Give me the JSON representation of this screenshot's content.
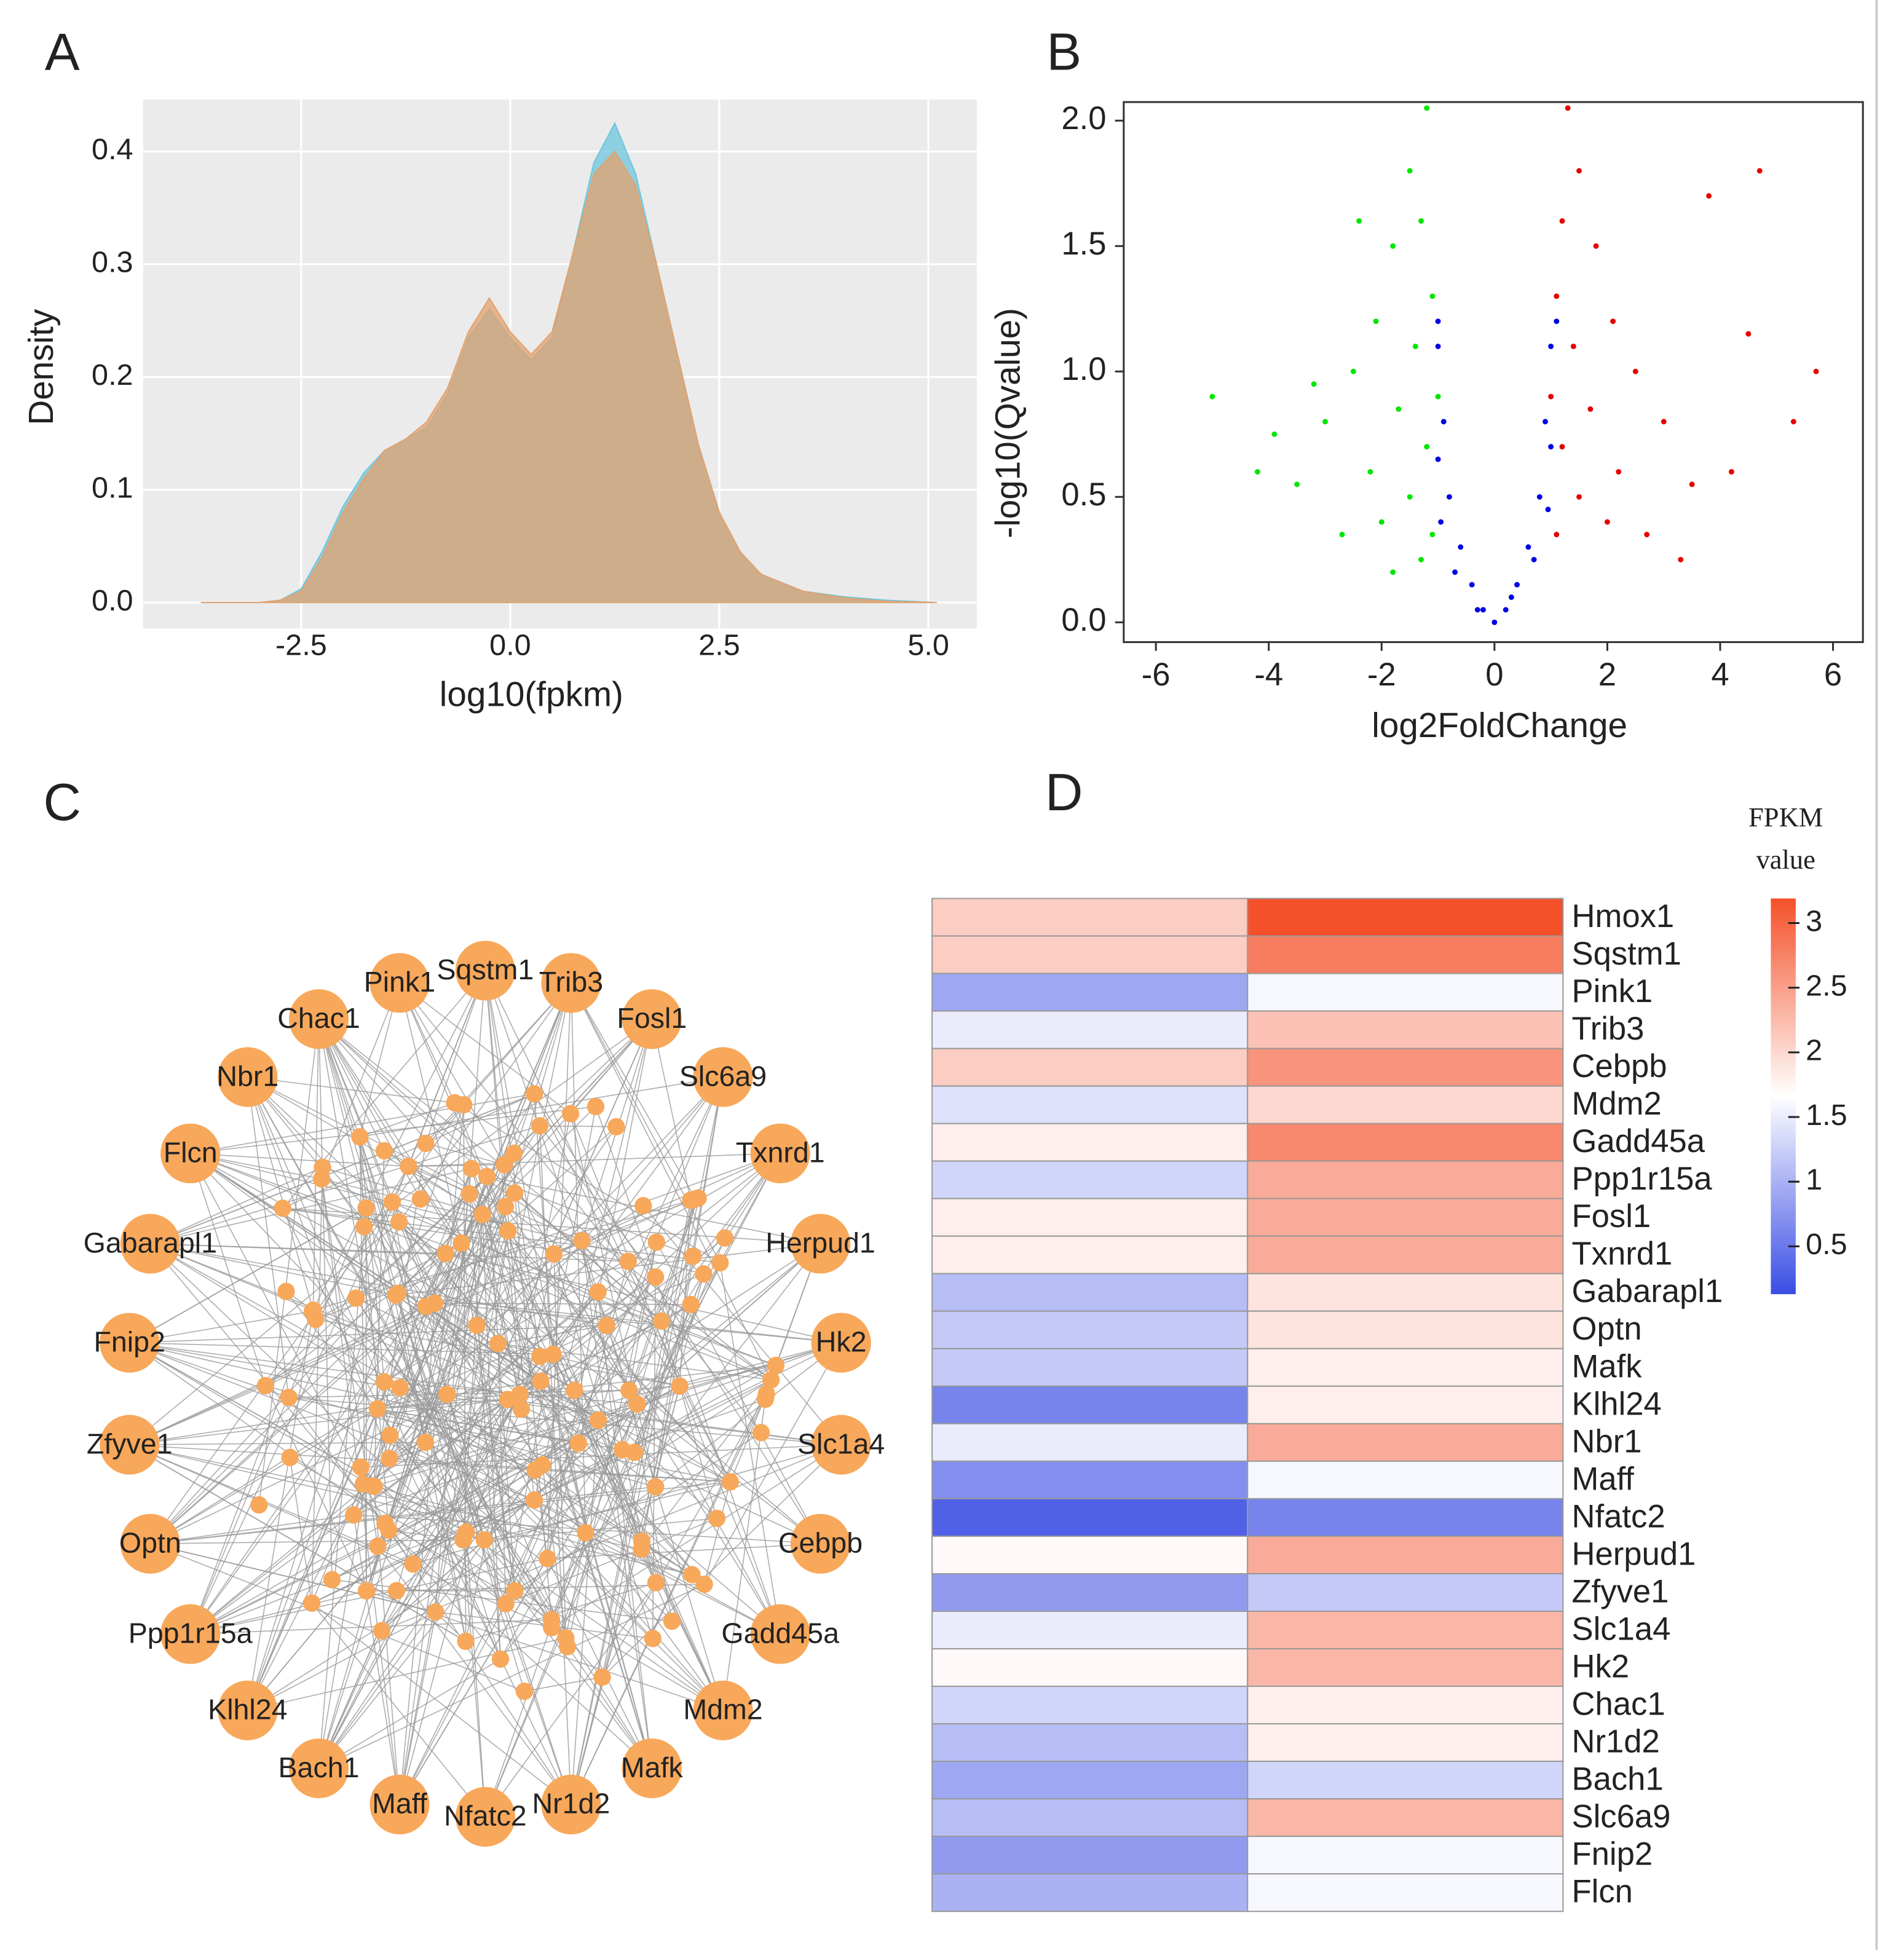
{
  "chart_data": [
    {
      "type": "area",
      "panel": "A",
      "x_label": "log10(fpkm)",
      "y_label": "Density",
      "x": [
        -3.7,
        -3,
        -2.75,
        -2.5,
        -2.25,
        -2,
        -1.75,
        -1.5,
        -1.25,
        -1,
        -0.75,
        -0.5,
        -0.25,
        0,
        0.25,
        0.5,
        0.75,
        1,
        1.25,
        1.5,
        1.75,
        2,
        2.25,
        2.5,
        2.75,
        3,
        3.5,
        4,
        4.5,
        5.1
      ],
      "series": [
        {
          "color": "#6ec6dc",
          "values": [
            0,
            0,
            0.002,
            0.012,
            0.045,
            0.085,
            0.115,
            0.135,
            0.145,
            0.155,
            0.185,
            0.235,
            0.26,
            0.235,
            0.215,
            0.235,
            0.31,
            0.39,
            0.425,
            0.38,
            0.3,
            0.22,
            0.14,
            0.08,
            0.045,
            0.025,
            0.01,
            0.005,
            0.002,
            0
          ]
        },
        {
          "color": "#e3a26e",
          "values": [
            0,
            0,
            0.002,
            0.01,
            0.04,
            0.08,
            0.11,
            0.135,
            0.145,
            0.16,
            0.19,
            0.24,
            0.27,
            0.24,
            0.22,
            0.24,
            0.31,
            0.38,
            0.4,
            0.37,
            0.3,
            0.22,
            0.14,
            0.08,
            0.045,
            0.025,
            0.01,
            0.004,
            0.001,
            0
          ]
        }
      ],
      "xlim": [
        -4.39,
        5.58
      ],
      "ylim": [
        -0.023,
        0.446
      ],
      "xticks": [
        -2.5,
        {
          "value": 0,
          "label": "0.0"
        },
        2.5,
        {
          "value": 5,
          "label": "5.0"
        }
      ],
      "yticks": [
        {
          "value": 0,
          "label": "0.0"
        },
        0.1,
        0.2,
        0.3,
        0.4
      ],
      "grid": true,
      "background": "#ebebeb"
    },
    {
      "type": "scatter",
      "panel": "B",
      "x_label": "log2FoldChange",
      "y_label": "-log10(Qvalue)",
      "series": [
        {
          "color": "#00e600",
          "x": [
            -1.2,
            -1.5,
            -1.3,
            -1.8,
            -1.1,
            -2.1,
            -1.4,
            -2.5,
            -1.0,
            -1.7,
            -3.0,
            -1.2,
            -2.2,
            -3.5,
            -1.5,
            -4.2,
            -2.0,
            -1.1,
            -2.7,
            -5.0,
            -1.3,
            -1.8,
            -3.9,
            -2.4,
            -3.2
          ],
          "y": [
            2.05,
            1.8,
            1.6,
            1.5,
            1.3,
            1.2,
            1.1,
            1.0,
            0.9,
            0.85,
            0.8,
            0.7,
            0.6,
            0.55,
            0.5,
            0.6,
            0.4,
            0.35,
            0.35,
            0.9,
            0.25,
            0.2,
            0.75,
            1.6,
            0.95
          ]
        },
        {
          "color": "#0000e6",
          "x": [
            0,
            -0.2,
            0.2,
            -0.4,
            0.4,
            -0.6,
            0.6,
            -0.8,
            0.8,
            -0.9,
            0.9,
            -1.0,
            1.0,
            -0.7,
            0.7,
            -0.95,
            0.95,
            -0.3,
            0.3,
            -1.0,
            1.0,
            1.1,
            -1.0
          ],
          "y": [
            0,
            0.05,
            0.05,
            0.15,
            0.15,
            0.3,
            0.3,
            0.5,
            0.5,
            0.8,
            0.8,
            1.1,
            1.1,
            0.2,
            0.25,
            0.4,
            0.45,
            0.05,
            0.1,
            0.65,
            0.7,
            1.2,
            1.2
          ]
        },
        {
          "color": "#e60000",
          "x": [
            1.3,
            1.5,
            1.2,
            1.8,
            1.1,
            2.1,
            1.4,
            2.5,
            1.0,
            1.7,
            3.0,
            1.2,
            2.2,
            3.5,
            1.5,
            4.2,
            2.0,
            1.1,
            2.7,
            4.7,
            5.7,
            5.3,
            3.8,
            4.5,
            3.3
          ],
          "y": [
            2.05,
            1.8,
            1.6,
            1.5,
            1.3,
            1.2,
            1.1,
            1.0,
            0.9,
            0.85,
            0.8,
            0.7,
            0.6,
            0.55,
            0.5,
            0.6,
            0.4,
            0.35,
            0.35,
            1.8,
            1.0,
            0.8,
            1.7,
            1.15,
            0.25
          ]
        }
      ],
      "xlim": [
        -6.57,
        6.53
      ],
      "ylim": [
        -0.079,
        2.074
      ],
      "xticks": [
        -6,
        -4,
        -2,
        0,
        2,
        4,
        6
      ],
      "yticks": [
        {
          "value": 0,
          "label": "0.0"
        },
        0.5,
        {
          "value": 1,
          "label": "1.0"
        },
        1.5,
        {
          "value": 2,
          "label": "2.0"
        }
      ],
      "grid": false
    },
    {
      "type": "heatmap",
      "panel": "D",
      "colorbar_title": "FPKM value",
      "rows": [
        "Hmox1",
        "Sqstm1",
        "Pink1",
        "Trib3",
        "Cebpb",
        "Mdm2",
        "Gadd45a",
        "Ppp1r15a",
        "Fosl1",
        "Txnrd1",
        "Gabarapl1",
        "Optn",
        "Mafk",
        "Klhl24",
        "Nbr1",
        "Maff",
        "Nfatc2",
        "Herpud1",
        "Zfyve1",
        "Slc1a4",
        "Hk2",
        "Chac1",
        "Nr1d2",
        "Bach1",
        "Slc6a9",
        "Fnip2",
        "Flcn"
      ],
      "values": [
        [
          2.1,
          3.2
        ],
        [
          2.1,
          2.8
        ],
        [
          0.9,
          1.6
        ],
        [
          1.5,
          2.2
        ],
        [
          2.1,
          2.6
        ],
        [
          1.4,
          2.0
        ],
        [
          1.8,
          2.7
        ],
        [
          1.3,
          2.4
        ],
        [
          1.8,
          2.4
        ],
        [
          1.8,
          2.4
        ],
        [
          1.1,
          1.9
        ],
        [
          1.2,
          1.9
        ],
        [
          1.2,
          1.8
        ],
        [
          0.6,
          1.8
        ],
        [
          1.5,
          2.4
        ],
        [
          0.7,
          1.6
        ],
        [
          0.3,
          0.6
        ],
        [
          1.7,
          2.4
        ],
        [
          0.8,
          1.2
        ],
        [
          1.5,
          2.3
        ],
        [
          1.7,
          2.3
        ],
        [
          1.3,
          1.8
        ],
        [
          1.1,
          1.8
        ],
        [
          0.9,
          1.3
        ],
        [
          1.1,
          2.3
        ],
        [
          0.8,
          1.6
        ],
        [
          1.0,
          1.6
        ]
      ],
      "clim": [
        0.13,
        3.19
      ],
      "colors": [
        "#3a4de4",
        "#ffffff",
        "#f4502a"
      ],
      "cticks": [
        0.5,
        1,
        1.5,
        2,
        2.5,
        3
      ]
    }
  ],
  "network": {
    "panel": "C",
    "node_color": "#f8a85a",
    "nodes": [
      "Sqstm1",
      "Trib3",
      "Fosl1",
      "Slc6a9",
      "Txnrd1",
      "Herpud1",
      "Hk2",
      "Slc1a4",
      "Cebpb",
      "Gadd45a",
      "Mdm2",
      "Mafk",
      "Nr1d2",
      "Nfatc2",
      "Maff",
      "Bach1",
      "Klhl24",
      "Ppp1r15a",
      "Optn",
      "Zfyve1",
      "Fnip2",
      "Gabarapl1",
      "Flcn",
      "Nbr1",
      "Chac1",
      "Pink1"
    ]
  }
}
